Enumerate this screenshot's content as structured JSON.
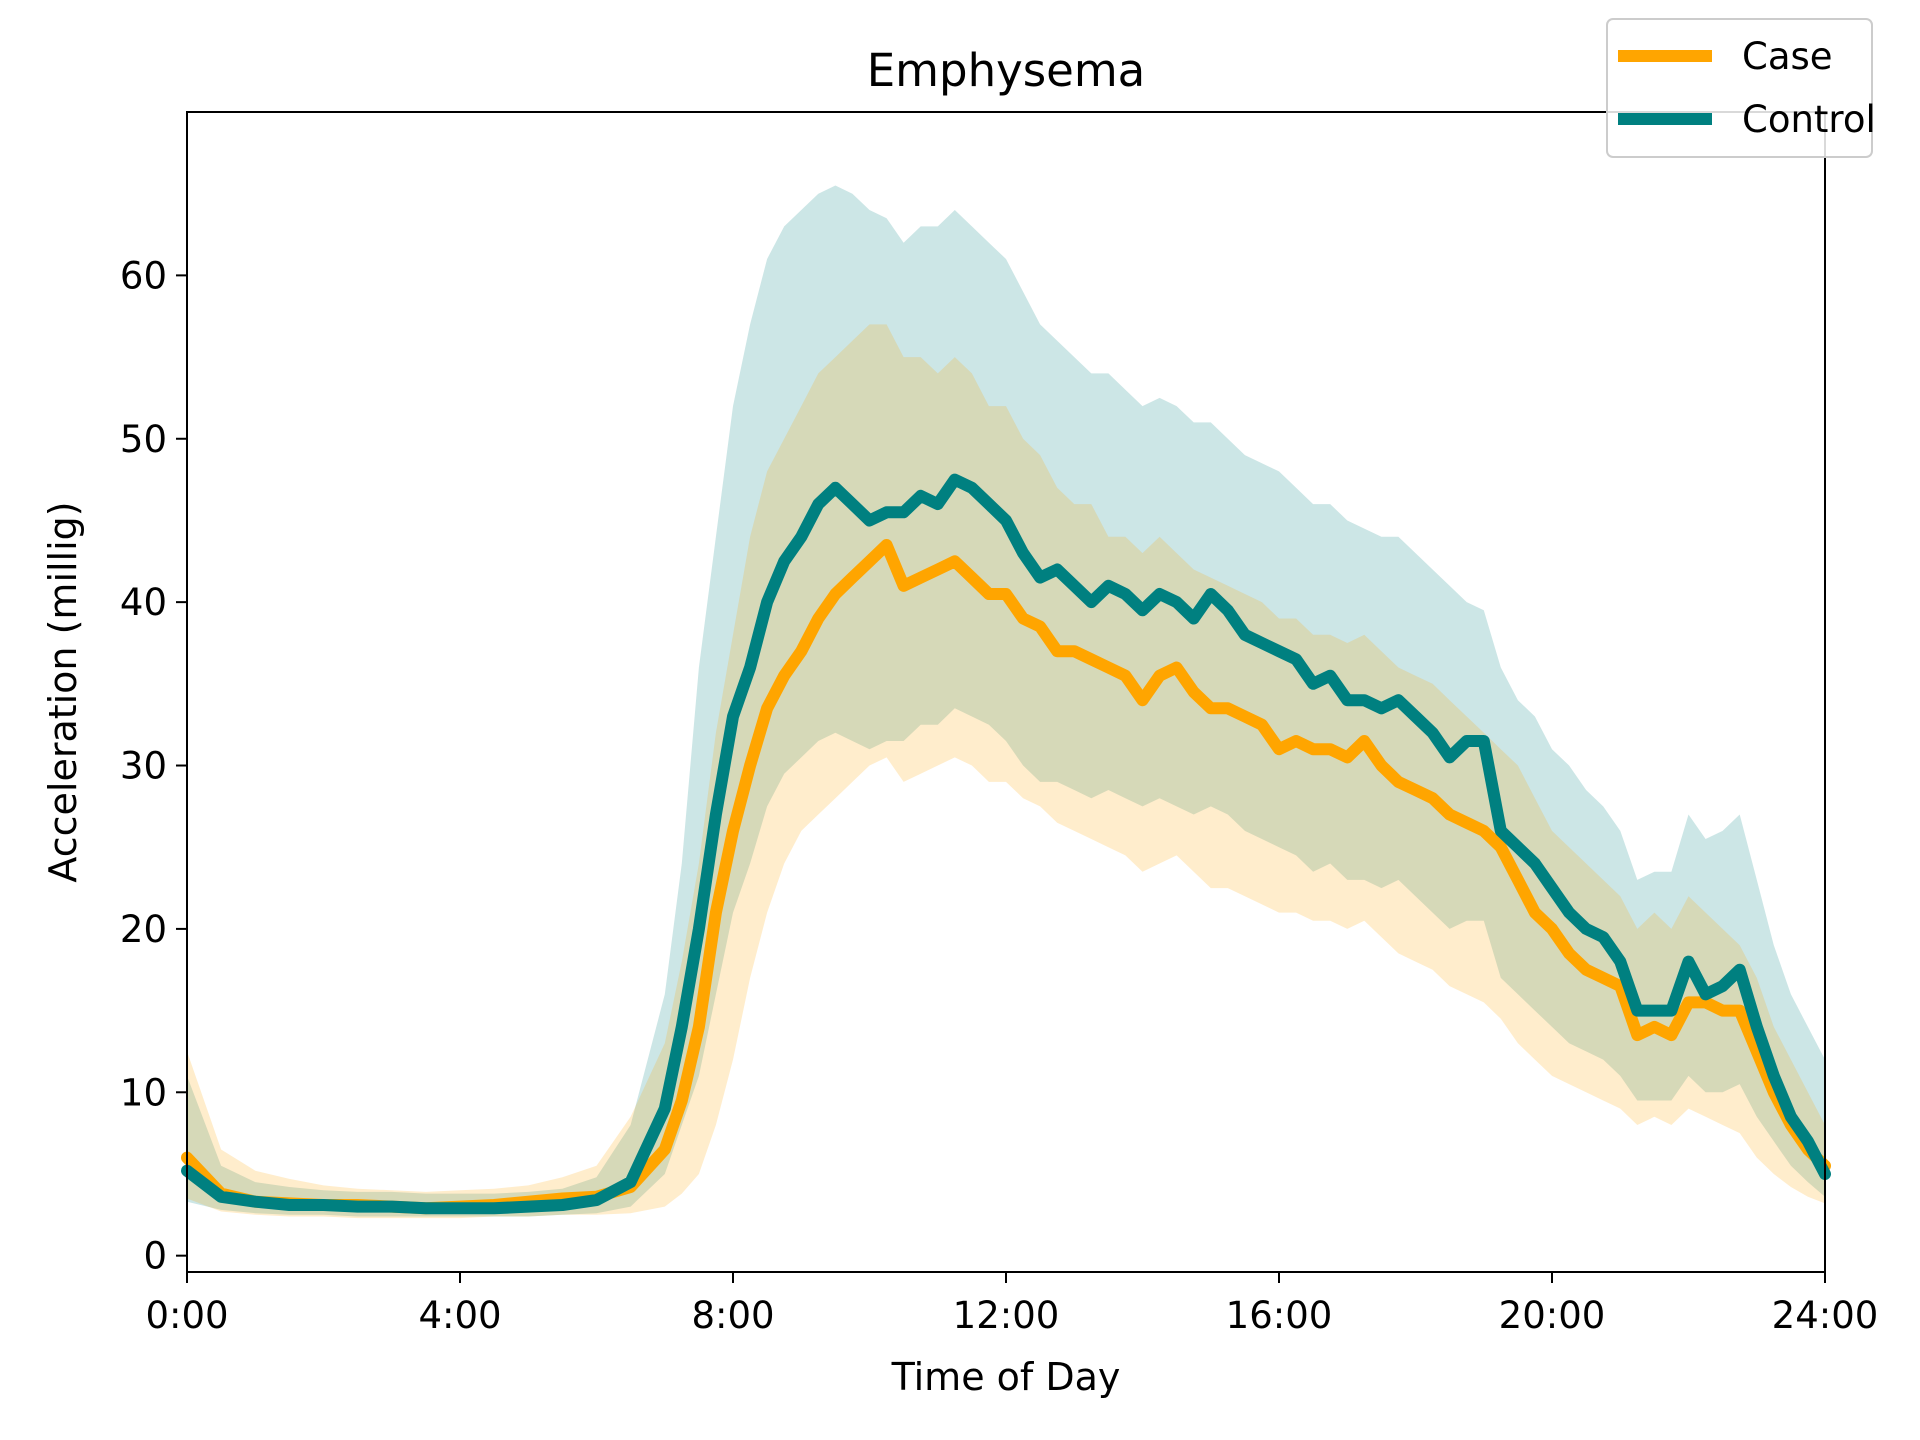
{
  "chart_data": {
    "type": "line",
    "title": "Emphysema",
    "xlabel": "Time of Day",
    "ylabel": "Acceleration (millig)",
    "xlim": [
      0,
      24
    ],
    "ylim": [
      -1,
      70
    ],
    "x_ticks": [
      {
        "value": 0,
        "label": "0:00"
      },
      {
        "value": 4,
        "label": "4:00"
      },
      {
        "value": 8,
        "label": "8:00"
      },
      {
        "value": 12,
        "label": "12:00"
      },
      {
        "value": 16,
        "label": "16:00"
      },
      {
        "value": 20,
        "label": "20:00"
      },
      {
        "value": 24,
        "label": "24:00"
      }
    ],
    "y_ticks": [
      {
        "value": 0,
        "label": "0"
      },
      {
        "value": 10,
        "label": "10"
      },
      {
        "value": 20,
        "label": "20"
      },
      {
        "value": 30,
        "label": "30"
      },
      {
        "value": 40,
        "label": "40"
      },
      {
        "value": 50,
        "label": "50"
      },
      {
        "value": 60,
        "label": "60"
      }
    ],
    "grid": false,
    "legend_position": "top-right",
    "x": [
      0,
      0.5,
      1,
      1.5,
      2,
      2.5,
      3,
      3.5,
      4,
      4.5,
      5,
      5.5,
      6,
      6.5,
      7,
      7.25,
      7.5,
      7.75,
      8,
      8.25,
      8.5,
      8.75,
      9,
      9.25,
      9.5,
      9.75,
      10,
      10.25,
      10.5,
      10.75,
      11,
      11.25,
      11.5,
      11.75,
      12,
      12.25,
      12.5,
      12.75,
      13,
      13.25,
      13.5,
      13.75,
      14,
      14.25,
      14.5,
      14.75,
      15,
      15.25,
      15.5,
      15.75,
      16,
      16.25,
      16.5,
      16.75,
      17,
      17.25,
      17.5,
      17.75,
      18,
      18.25,
      18.5,
      18.75,
      19,
      19.25,
      19.5,
      19.75,
      20,
      20.25,
      20.5,
      20.75,
      21,
      21.25,
      21.5,
      21.75,
      22,
      22.25,
      22.5,
      22.75,
      23,
      23.25,
      23.5,
      23.75,
      24
    ],
    "series": [
      {
        "name": "Case",
        "color": "#FFA500",
        "band_opacity": 0.2,
        "values": [
          6,
          3.8,
          3.3,
          3.2,
          3.1,
          3.1,
          3.0,
          2.9,
          3.0,
          3.1,
          3.3,
          3.5,
          3.6,
          4.2,
          6.5,
          9.5,
          14,
          21,
          26,
          30,
          33.5,
          35.5,
          37,
          39,
          40.5,
          41.5,
          42.5,
          43.5,
          41,
          41.5,
          42,
          42.5,
          41.5,
          40.5,
          40.5,
          39,
          38.5,
          37,
          37,
          36.5,
          36,
          35.5,
          34,
          35.5,
          36,
          34.5,
          33.5,
          33.5,
          33,
          32.5,
          31,
          31.5,
          31,
          31,
          30.5,
          31.5,
          30,
          29,
          28.5,
          28,
          27,
          26.5,
          26,
          25,
          23,
          21,
          20,
          18.5,
          17.5,
          17,
          16.5,
          13.5,
          14,
          13.5,
          15.5,
          15.5,
          15,
          15,
          12.5,
          10,
          8,
          6.5,
          5.5
        ],
        "upper": [
          12.5,
          6.5,
          5.2,
          4.7,
          4.3,
          4.1,
          4.0,
          3.9,
          4.0,
          4.1,
          4.3,
          4.8,
          5.5,
          8.5,
          13,
          18,
          24,
          32,
          38,
          44,
          48,
          50,
          52,
          54,
          55,
          56,
          57,
          57,
          55,
          55,
          54,
          55,
          54,
          52,
          52,
          50,
          49,
          47,
          46,
          46,
          44,
          44,
          43,
          44,
          43,
          42,
          41.5,
          41,
          40.5,
          40,
          39,
          39,
          38,
          38,
          37.5,
          38,
          37,
          36,
          35.5,
          35,
          34,
          33,
          32,
          31,
          30,
          28,
          26,
          25,
          24,
          23,
          22,
          20,
          21,
          20,
          22,
          21,
          20,
          19,
          17,
          14,
          12,
          10,
          8
        ],
        "lower": [
          3.5,
          2.7,
          2.5,
          2.4,
          2.4,
          2.3,
          2.3,
          2.3,
          2.3,
          2.4,
          2.4,
          2.5,
          2.5,
          2.6,
          3.0,
          3.8,
          5,
          8,
          12,
          17,
          21,
          24,
          26,
          27,
          28,
          29,
          30,
          30.5,
          29,
          29.5,
          30,
          30.5,
          30,
          29,
          29,
          28,
          27.5,
          26.5,
          26,
          25.5,
          25,
          24.5,
          23.5,
          24,
          24.5,
          23.5,
          22.5,
          22.5,
          22,
          21.5,
          21,
          21,
          20.5,
          20.5,
          20,
          20.5,
          19.5,
          18.5,
          18,
          17.5,
          16.5,
          16,
          15.5,
          14.5,
          13,
          12,
          11,
          10.5,
          10,
          9.5,
          9,
          8,
          8.5,
          8,
          9,
          8.5,
          8,
          7.5,
          6,
          5,
          4.2,
          3.6,
          3.2
        ]
      },
      {
        "name": "Control",
        "color": "#008080",
        "band_opacity": 0.2,
        "values": [
          5.2,
          3.6,
          3.3,
          3.1,
          3.1,
          3.0,
          3.0,
          2.9,
          2.9,
          2.9,
          3.0,
          3.1,
          3.4,
          4.5,
          9,
          14,
          20,
          27,
          33,
          36,
          40,
          42.5,
          44,
          46,
          47,
          46,
          45,
          45.5,
          45.5,
          46.5,
          46,
          47.5,
          47,
          46,
          45,
          43,
          41.5,
          42,
          41,
          40,
          41,
          40.5,
          39.5,
          40.5,
          40,
          39,
          40.5,
          39.5,
          38,
          37.5,
          37,
          36.5,
          35,
          35.5,
          34,
          34,
          33.5,
          34,
          33,
          32,
          30.5,
          31.5,
          31.5,
          26,
          25,
          24,
          22.5,
          21,
          20,
          19.5,
          18,
          15,
          15,
          15,
          18,
          16,
          16.5,
          17.5,
          14,
          11,
          8.5,
          7,
          5
        ]
      }
    ],
    "band": {
      "name": "Control",
      "upper": [
        11,
        5.5,
        4.5,
        4.2,
        4.0,
        3.9,
        3.9,
        3.8,
        3.8,
        3.8,
        3.9,
        4.1,
        4.8,
        8,
        16,
        24,
        36,
        44,
        52,
        57,
        61,
        63,
        64,
        65,
        65.5,
        65,
        64,
        63.5,
        62,
        63,
        63,
        64,
        63,
        62,
        61,
        59,
        57,
        56,
        55,
        54,
        54,
        53,
        52,
        52.5,
        52,
        51,
        51,
        50,
        49,
        48.5,
        48,
        47,
        46,
        46,
        45,
        44.5,
        44,
        44,
        43,
        42,
        41,
        40,
        39.5,
        36,
        34,
        33,
        31,
        30,
        28.5,
        27.5,
        26,
        23,
        23.5,
        23.5,
        27,
        25.5,
        26,
        27,
        23,
        19,
        16,
        14,
        12
      ],
      "lower": [
        3.3,
        2.8,
        2.6,
        2.5,
        2.5,
        2.4,
        2.4,
        2.4,
        2.4,
        2.4,
        2.4,
        2.5,
        2.6,
        3.0,
        5,
        8,
        11,
        16,
        21,
        24,
        27.5,
        29.5,
        30.5,
        31.5,
        32,
        31.5,
        31,
        31.5,
        31.5,
        32.5,
        32.5,
        33.5,
        33,
        32.5,
        31.5,
        30,
        29,
        29,
        28.5,
        28,
        28.5,
        28,
        27.5,
        28,
        27.5,
        27,
        27.5,
        27,
        26,
        25.5,
        25,
        24.5,
        23.5,
        24,
        23,
        23,
        22.5,
        23,
        22,
        21,
        20,
        20.5,
        20.5,
        17,
        16,
        15,
        14,
        13,
        12.5,
        12,
        11,
        9.5,
        9.5,
        9.5,
        11,
        10,
        10,
        10.5,
        8.5,
        7,
        5.5,
        4.5,
        3.6
      ]
    },
    "legend": [
      "Case",
      "Control"
    ]
  }
}
